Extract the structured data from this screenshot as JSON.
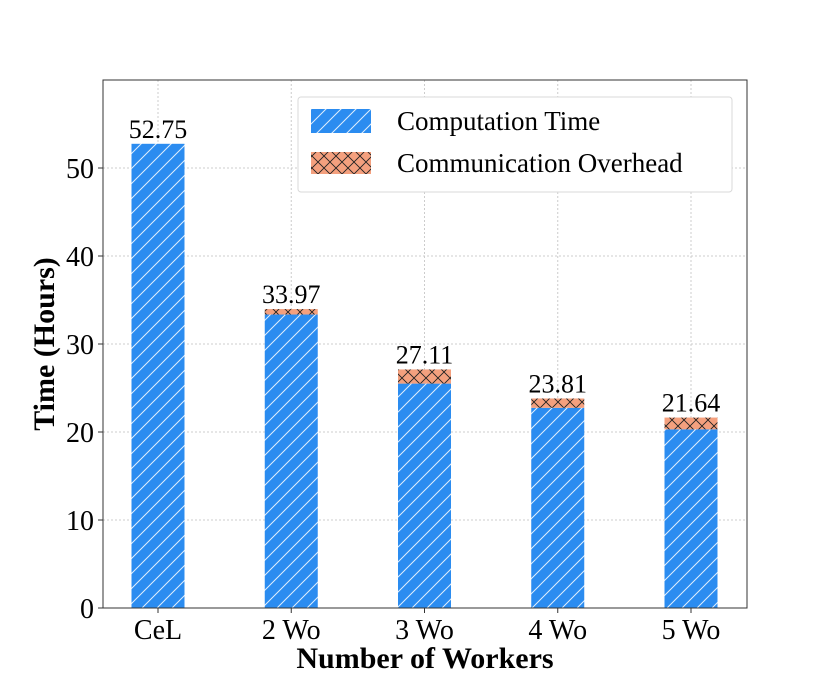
{
  "chart_data": {
    "type": "bar",
    "stacked": true,
    "categories": [
      "CeL",
      "2 Wo",
      "3 Wo",
      "4 Wo",
      "5 Wo"
    ],
    "series": [
      {
        "name": "Computation Time",
        "values": [
          52.75,
          33.35,
          25.5,
          22.75,
          20.3
        ],
        "color": "#2b8cf0",
        "pattern": "diagonal-hatch"
      },
      {
        "name": "Communication Overhead",
        "values": [
          0,
          0.62,
          1.61,
          1.06,
          1.34
        ],
        "color": "#f4a07e",
        "pattern": "cross-hatch"
      }
    ],
    "totals": [
      "52.75",
      "33.97",
      "27.11",
      "23.81",
      "21.64"
    ],
    "xlabel": "Number of Workers",
    "ylabel": "Time (Hours)",
    "ylim": [
      0,
      60
    ],
    "yticks": [
      0,
      10,
      20,
      30,
      40,
      50
    ],
    "grid": true,
    "legend_position": "top-right"
  }
}
